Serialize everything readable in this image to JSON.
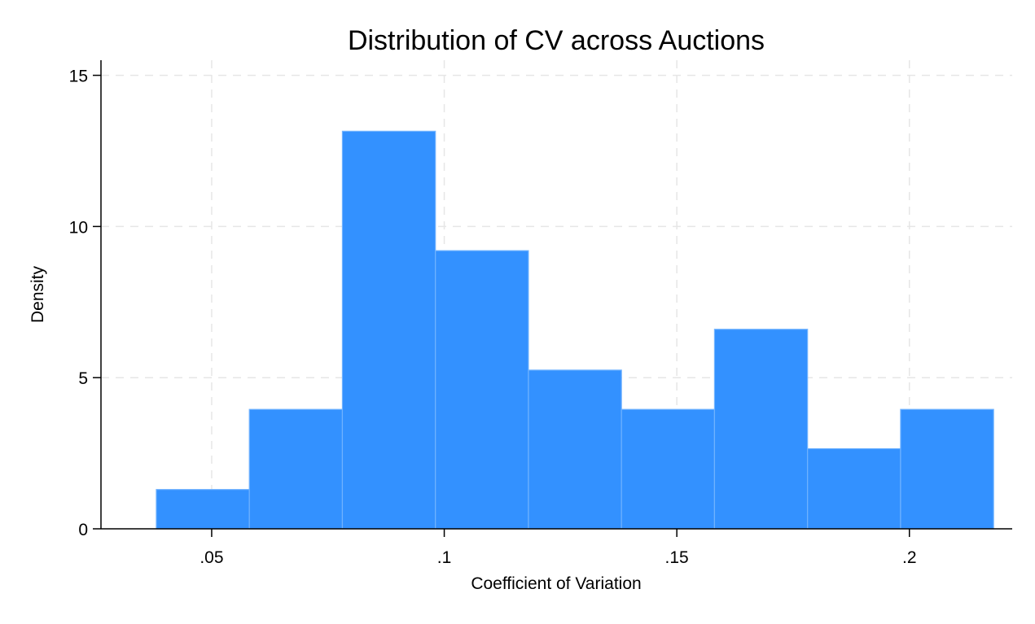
{
  "chart_data": {
    "type": "bar",
    "title": "Distribution of CV across Auctions",
    "xlabel": "Coefficient of Variation",
    "ylabel": "Density",
    "xlim": [
      0.0262,
      0.2221
    ],
    "ylim": [
      0,
      15.5
    ],
    "xticks": [
      {
        "value": 0.05,
        "label": ".05"
      },
      {
        "value": 0.1,
        "label": ".1"
      },
      {
        "value": 0.15,
        "label": ".15"
      },
      {
        "value": 0.2,
        "label": ".2"
      }
    ],
    "yticks": [
      {
        "value": 0,
        "label": "0"
      },
      {
        "value": 5,
        "label": "5"
      },
      {
        "value": 10,
        "label": "10"
      },
      {
        "value": 15,
        "label": "15"
      }
    ],
    "grid": true,
    "bins": [
      {
        "x0": 0.0381,
        "x1": 0.0581,
        "density": 1.3
      },
      {
        "x0": 0.0581,
        "x1": 0.0781,
        "density": 3.95
      },
      {
        "x0": 0.0781,
        "x1": 0.0981,
        "density": 13.15
      },
      {
        "x0": 0.0981,
        "x1": 0.1181,
        "density": 9.2
      },
      {
        "x0": 0.1181,
        "x1": 0.1381,
        "density": 5.25
      },
      {
        "x0": 0.1381,
        "x1": 0.1581,
        "density": 3.95
      },
      {
        "x0": 0.1581,
        "x1": 0.1781,
        "density": 6.6
      },
      {
        "x0": 0.1781,
        "x1": 0.1981,
        "density": 2.65
      },
      {
        "x0": 0.1981,
        "x1": 0.2181,
        "density": 3.95
      }
    ],
    "colors": {
      "bar_fill": "#3391ff",
      "bar_edge": "#6fb2ff",
      "grid": "#e6e6e6",
      "axis": "#000000"
    }
  }
}
